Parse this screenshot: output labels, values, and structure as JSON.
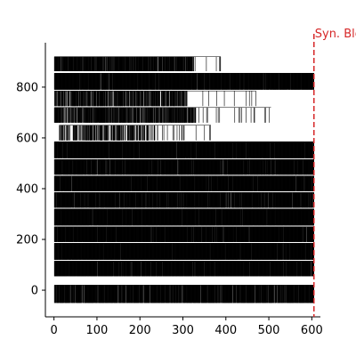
{
  "chart_data": {
    "type": "raster",
    "title": "",
    "xlabel": "",
    "ylabel": "",
    "xlim": [
      -20,
      620
    ],
    "ylim": [
      -105,
      975
    ],
    "grid": false,
    "spines": [
      "left",
      "bottom"
    ],
    "x_ticks": [
      0,
      100,
      200,
      300,
      400,
      500,
      600
    ],
    "y_ticks": [
      0,
      200,
      400,
      600,
      800
    ],
    "rows": [
      {
        "y_low": 863,
        "y_high": 920,
        "x_start": 1,
        "x_end": 388,
        "x_dense_end": 325,
        "density": 0.85
      },
      {
        "y_low": 790,
        "y_high": 855,
        "x_start": 1,
        "x_end": 605,
        "x_dense_end": 605,
        "density": 0.95
      },
      {
        "y_low": 725,
        "y_high": 785,
        "x_start": 1,
        "x_end": 470,
        "x_dense_end": 310,
        "density": 0.75
      },
      {
        "y_low": 660,
        "y_high": 720,
        "x_start": 1,
        "x_end": 505,
        "x_dense_end": 330,
        "density": 0.75
      },
      {
        "y_low": 590,
        "y_high": 650,
        "x_start": 12,
        "x_end": 365,
        "x_dense_end": 235,
        "density": 0.45
      },
      {
        "y_low": 520,
        "y_high": 585,
        "x_start": 1,
        "x_end": 605,
        "x_dense_end": 605,
        "density": 0.97
      },
      {
        "y_low": 455,
        "y_high": 515,
        "x_start": 1,
        "x_end": 605,
        "x_dense_end": 605,
        "density": 0.95
      },
      {
        "y_low": 390,
        "y_high": 450,
        "x_start": 1,
        "x_end": 605,
        "x_dense_end": 605,
        "density": 0.97
      },
      {
        "y_low": 325,
        "y_high": 385,
        "x_start": 1,
        "x_end": 605,
        "x_dense_end": 605,
        "density": 0.93
      },
      {
        "y_low": 255,
        "y_high": 320,
        "x_start": 1,
        "x_end": 605,
        "x_dense_end": 605,
        "density": 0.97
      },
      {
        "y_low": 190,
        "y_high": 250,
        "x_start": 1,
        "x_end": 605,
        "x_dense_end": 605,
        "density": 0.96
      },
      {
        "y_low": 120,
        "y_high": 185,
        "x_start": 1,
        "x_end": 605,
        "x_dense_end": 605,
        "density": 0.97
      },
      {
        "y_low": 55,
        "y_high": 115,
        "x_start": 1,
        "x_end": 605,
        "x_dense_end": 605,
        "density": 0.96
      },
      {
        "y_low": -50,
        "y_high": 20,
        "x_start": 1,
        "x_end": 605,
        "x_dense_end": 605,
        "density": 0.9
      }
    ],
    "vline": {
      "x": 605,
      "label": "Syn. Blo",
      "color": "#d62728",
      "style": "dashed"
    }
  }
}
